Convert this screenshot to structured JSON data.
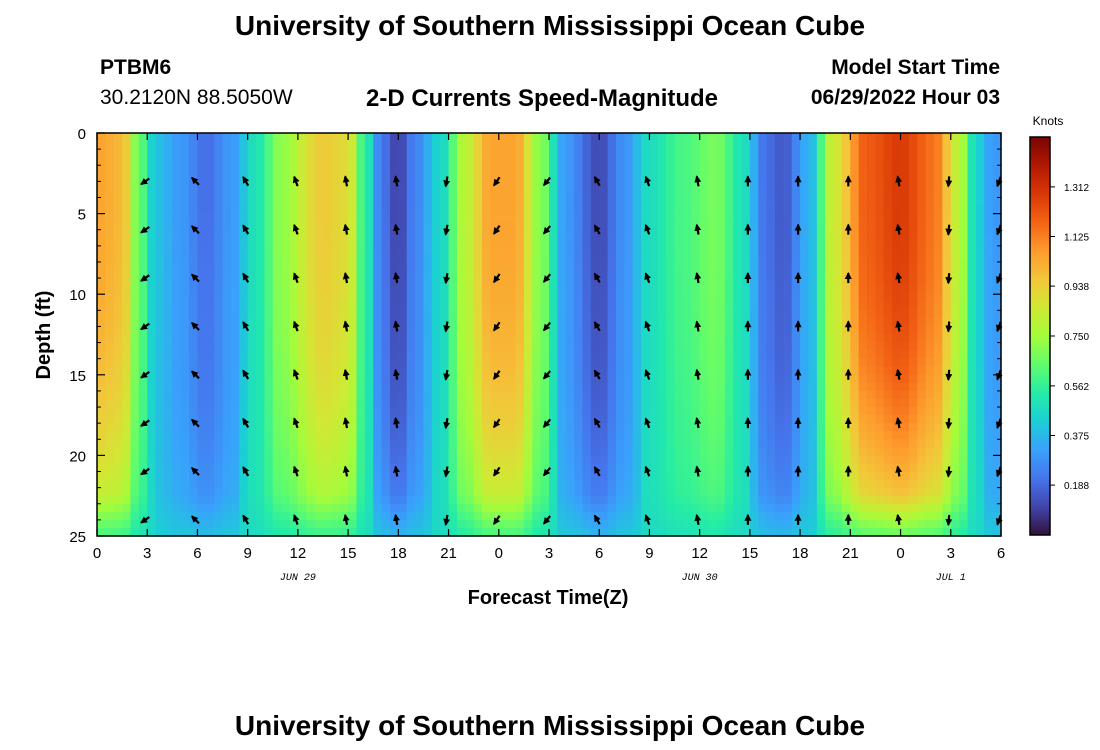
{
  "header": {
    "title": "University of Southern Mississippi Ocean Cube",
    "station_id": "PTBM6",
    "station_coords": "30.2120N  88.5050W",
    "plot_title": "2-D Currents Speed-Magnitude",
    "model_start_label": "Model Start Time",
    "model_start_value": "06/29/2022 Hour 03"
  },
  "footer": {
    "title": "University of Southern Mississippi Ocean Cube"
  },
  "chart_data": {
    "type": "heatmap",
    "title": "2-D Currents Speed-Magnitude",
    "xlabel": "Forecast Time(Z)",
    "ylabel": "Depth (ft)",
    "x_tick_labels": [
      "0",
      "3",
      "6",
      "9",
      "12",
      "15",
      "18",
      "21",
      "0",
      "3",
      "6",
      "9",
      "12",
      "15",
      "18",
      "21",
      "0",
      "3",
      "6"
    ],
    "x_range_hours": [
      0,
      54
    ],
    "date_labels": [
      {
        "label": "JUN 29",
        "hour": 12
      },
      {
        "label": "JUN 30",
        "hour": 36
      },
      {
        "label": "JUL 1",
        "hour": 51
      }
    ],
    "y_tick_labels": [
      "0",
      "5",
      "10",
      "15",
      "20",
      "25"
    ],
    "ylim_ft": [
      0,
      25
    ],
    "colorbar": {
      "label": "Knots",
      "ticks": [
        "1.312",
        "1.125",
        "0.938",
        "0.750",
        "0.562",
        "0.375",
        "0.188"
      ],
      "range": [
        0,
        1.5
      ],
      "colors": [
        "#30123b",
        "#4145ab",
        "#4675ed",
        "#39a2fc",
        "#1bcfd4",
        "#24eca6",
        "#61fc6c",
        "#a4fc3b",
        "#d1e834",
        "#f3c63a",
        "#fe9b2d",
        "#f36315",
        "#d93806",
        "#b11901",
        "#7a0402"
      ]
    },
    "speed_profile_knots": [
      {
        "hour": 0,
        "speed": 1.05
      },
      {
        "hour": 1.5,
        "speed": 1.0
      },
      {
        "hour": 2.5,
        "speed": 0.65
      },
      {
        "hour": 3.5,
        "speed": 0.4
      },
      {
        "hour": 5,
        "speed": 0.3
      },
      {
        "hour": 6.5,
        "speed": 0.2
      },
      {
        "hour": 8,
        "speed": 0.3
      },
      {
        "hour": 9.5,
        "speed": 0.5
      },
      {
        "hour": 11,
        "speed": 0.72
      },
      {
        "hour": 13.5,
        "speed": 0.95
      },
      {
        "hour": 15,
        "speed": 0.9
      },
      {
        "hour": 16,
        "speed": 0.55
      },
      {
        "hour": 17,
        "speed": 0.22
      },
      {
        "hour": 18,
        "speed": 0.1
      },
      {
        "hour": 19,
        "speed": 0.25
      },
      {
        "hour": 20.5,
        "speed": 0.45
      },
      {
        "hour": 22,
        "speed": 0.8
      },
      {
        "hour": 23.5,
        "speed": 1.05
      },
      {
        "hour": 25,
        "speed": 1.05
      },
      {
        "hour": 26.5,
        "speed": 0.7
      },
      {
        "hour": 28,
        "speed": 0.3
      },
      {
        "hour": 30,
        "speed": 0.12
      },
      {
        "hour": 31.5,
        "speed": 0.28
      },
      {
        "hour": 33,
        "speed": 0.48
      },
      {
        "hour": 35,
        "speed": 0.6
      },
      {
        "hour": 37,
        "speed": 0.68
      },
      {
        "hour": 38.5,
        "speed": 0.5
      },
      {
        "hour": 40,
        "speed": 0.2
      },
      {
        "hour": 41,
        "speed": 0.15
      },
      {
        "hour": 42.5,
        "speed": 0.35
      },
      {
        "hour": 44,
        "speed": 0.85
      },
      {
        "hour": 46,
        "speed": 1.2
      },
      {
        "hour": 48,
        "speed": 1.28
      },
      {
        "hour": 50,
        "speed": 1.15
      },
      {
        "hour": 51.5,
        "speed": 0.8
      },
      {
        "hour": 52.5,
        "speed": 0.45
      },
      {
        "hour": 53.5,
        "speed": 0.3
      },
      {
        "hour": 54,
        "speed": 0.3
      }
    ],
    "vector_times_hours": [
      3,
      6,
      9,
      12,
      15,
      18,
      21,
      24,
      27,
      30,
      33,
      36,
      39,
      42,
      45,
      48,
      51,
      54
    ],
    "vector_depths_ft": [
      3,
      6,
      9,
      12,
      15,
      18,
      21,
      24
    ],
    "vector_direction_deg_by_time": [
      235,
      315,
      330,
      340,
      350,
      350,
      190,
      215,
      220,
      330,
      340,
      350,
      0,
      0,
      0,
      350,
      185,
      200
    ]
  }
}
